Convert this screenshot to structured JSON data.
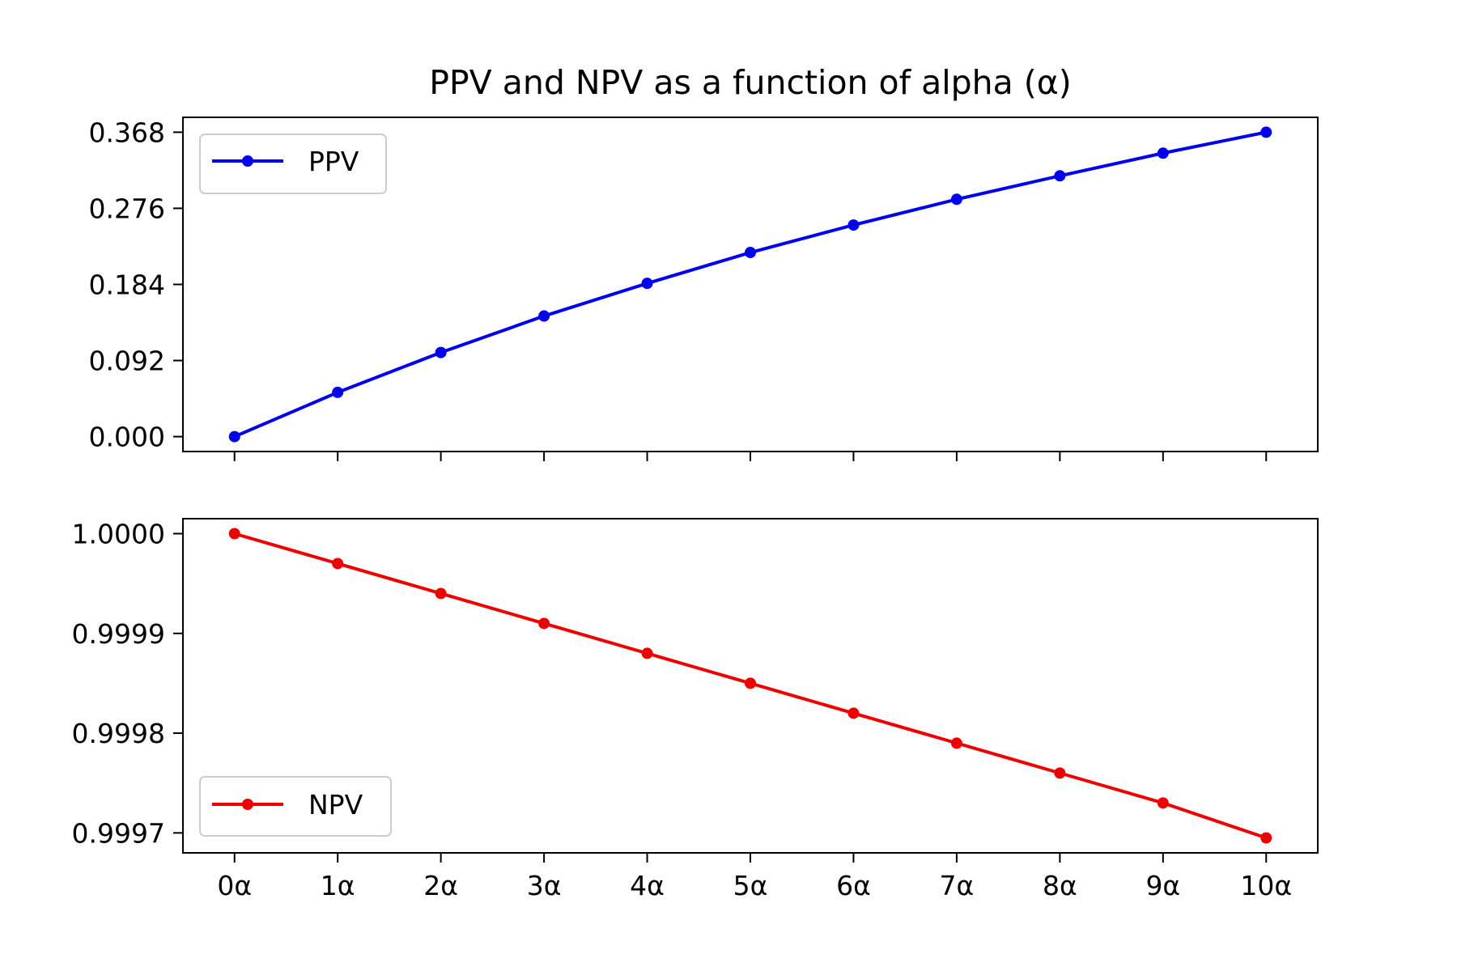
{
  "chart_data": {
    "title": "PPV and NPV as a function of alpha (α)",
    "type": "line",
    "x_tick_labels": [
      "0α",
      "1α",
      "2α",
      "3α",
      "4α",
      "5α",
      "6α",
      "7α",
      "8α",
      "9α",
      "10α"
    ],
    "x": [
      0,
      1,
      2,
      3,
      4,
      5,
      6,
      7,
      8,
      9,
      10
    ],
    "xlim": [
      -0.5,
      10.5
    ],
    "grid": false,
    "panels": [
      {
        "id": "ppv",
        "legend_position": "upper-left",
        "ylim": [
          -0.018,
          0.386
        ],
        "yticks": [
          0.0,
          0.092,
          0.184,
          0.276,
          0.368
        ],
        "ytick_labels": [
          "0.000",
          "0.092",
          "0.184",
          "0.276",
          "0.368"
        ],
        "series": [
          {
            "name": "PPV",
            "color": "#0000ee",
            "values": [
              0.0,
              0.0535,
              0.1017,
              0.1458,
              0.1853,
              0.2226,
              0.2558,
              0.2869,
              0.3153,
              0.3427,
              0.368
            ]
          }
        ]
      },
      {
        "id": "npv",
        "legend_position": "lower-left",
        "ylim": [
          0.99968,
          1.000015
        ],
        "yticks": [
          0.9997,
          0.9998,
          0.9999,
          1.0
        ],
        "ytick_labels": [
          "0.9997",
          "0.9998",
          "0.9999",
          "1.0000"
        ],
        "series": [
          {
            "name": "NPV",
            "color": "#ee0000",
            "values": [
              1.0,
              0.99997,
              0.99994,
              0.99991,
              0.99988,
              0.99985,
              0.99982,
              0.99979,
              0.99976,
              0.99973,
              0.999695
            ]
          }
        ]
      }
    ]
  }
}
